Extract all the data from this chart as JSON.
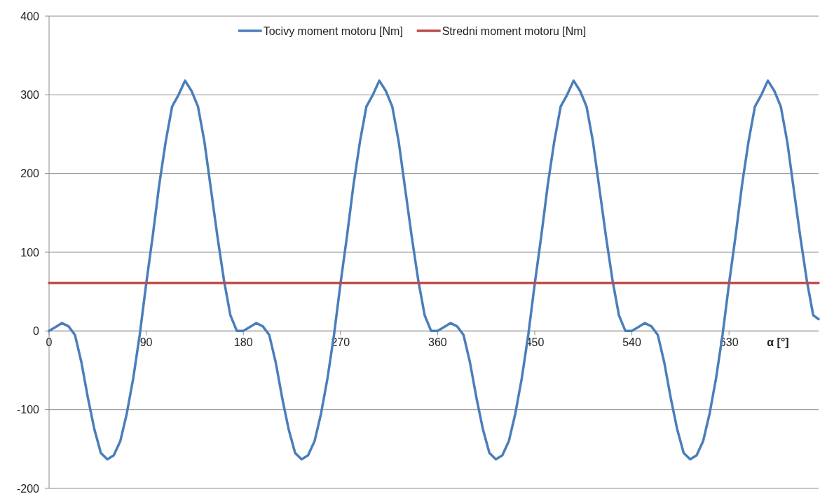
{
  "chart_data": {
    "type": "line",
    "xlabel": "α [°]",
    "xlim": [
      0,
      713
    ],
    "xticks": [
      0,
      90,
      180,
      270,
      360,
      450,
      540,
      630
    ],
    "ylim": [
      -200,
      400
    ],
    "yticks": [
      -200,
      -100,
      0,
      100,
      200,
      300,
      400
    ],
    "grid": "y",
    "legend": "top",
    "marker": "none",
    "line_style": "solid",
    "series": [
      {
        "name": "Tocivy moment motoru [Nm]",
        "color": "#4a7ebb",
        "x": [
          0,
          6,
          12,
          18,
          24,
          30,
          36,
          42,
          48,
          54,
          60,
          66,
          72,
          78,
          84,
          90,
          96,
          102,
          108,
          114,
          120,
          126,
          132,
          138,
          144,
          150,
          156,
          162,
          168,
          174,
          180,
          186,
          192,
          198,
          204,
          210,
          216,
          222,
          228,
          234,
          240,
          246,
          252,
          258,
          264,
          270,
          276,
          282,
          288,
          294,
          300,
          306,
          312,
          318,
          324,
          330,
          336,
          342,
          348,
          354,
          360,
          366,
          372,
          378,
          384,
          390,
          396,
          402,
          408,
          414,
          420,
          426,
          432,
          438,
          444,
          450,
          456,
          462,
          468,
          474,
          480,
          486,
          492,
          498,
          504,
          510,
          516,
          522,
          528,
          534,
          540,
          546,
          552,
          558,
          564,
          570,
          576,
          582,
          588,
          594,
          600,
          606,
          612,
          618,
          624,
          630,
          636,
          642,
          648,
          654,
          660,
          666,
          672,
          678,
          684,
          690,
          696,
          702,
          708,
          713
        ],
        "values": [
          0,
          5,
          10,
          6,
          -5,
          -40,
          -85,
          -125,
          -155,
          -163,
          -158,
          -140,
          -105,
          -60,
          -5,
          60,
          120,
          185,
          240,
          285,
          300,
          318,
          305,
          285,
          240,
          180,
          120,
          65,
          20,
          0,
          0,
          5,
          10,
          6,
          -5,
          -40,
          -85,
          -125,
          -155,
          -163,
          -158,
          -140,
          -105,
          -60,
          -5,
          60,
          120,
          185,
          240,
          285,
          300,
          318,
          305,
          285,
          240,
          180,
          120,
          65,
          20,
          0,
          0,
          5,
          10,
          6,
          -5,
          -40,
          -85,
          -125,
          -155,
          -163,
          -158,
          -140,
          -105,
          -60,
          -5,
          60,
          120,
          185,
          240,
          285,
          300,
          318,
          305,
          285,
          240,
          180,
          120,
          65,
          20,
          0,
          0,
          5,
          10,
          6,
          -5,
          -40,
          -85,
          -125,
          -155,
          -163,
          -158,
          -140,
          -105,
          -60,
          -5,
          60,
          120,
          185,
          240,
          285,
          300,
          318,
          305,
          285,
          240,
          180,
          120,
          65,
          20,
          15
        ]
      },
      {
        "name": "Stredni moment motoru [Nm]",
        "color": "#be4b48",
        "x": [
          0,
          713
        ],
        "values": [
          61,
          61
        ]
      }
    ]
  }
}
